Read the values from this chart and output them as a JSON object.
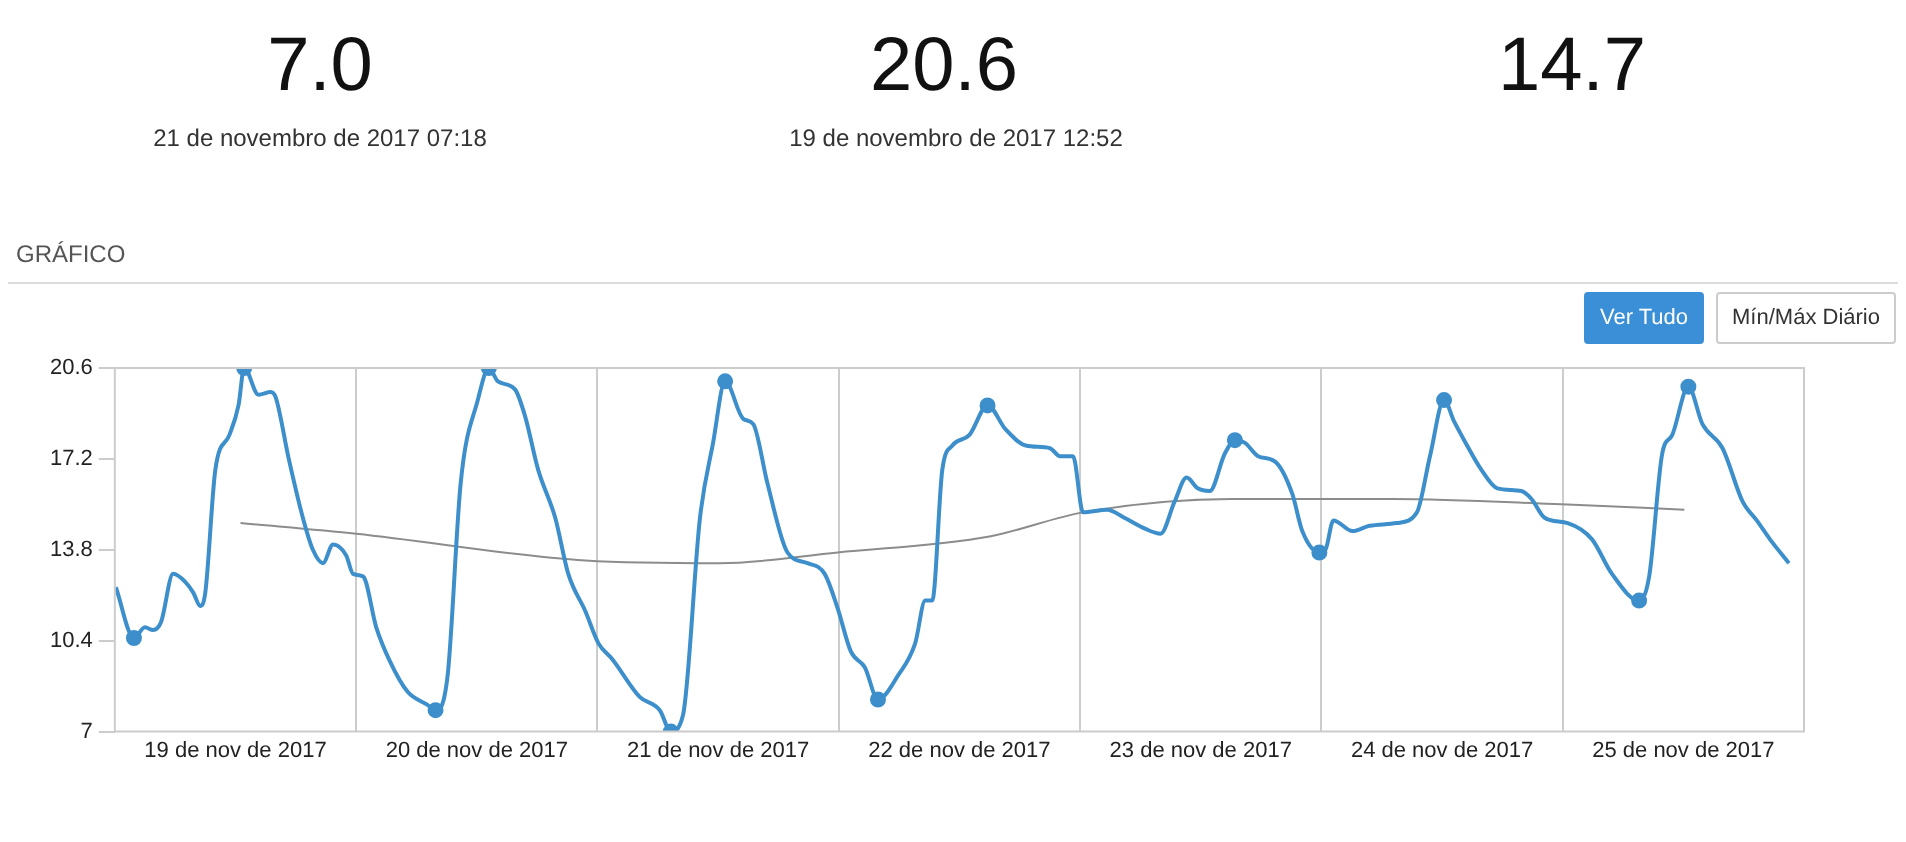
{
  "chart_data": {
    "type": "line",
    "title": "GRÁFICO",
    "annotations": [
      "7.0",
      "21 de novembro de 2017 07:18",
      "20.6",
      "19 de novembro de 2017 12:52",
      "14.7",
      "Ver Tudo",
      "Mín/Máx Diário"
    ],
    "xlim": [
      "2017-11-19T00:00",
      "2017-11-26T00:00"
    ],
    "xticks": [
      {
        "value": "2017-11-19T12:00",
        "label": "19 de nov de 2017"
      },
      {
        "value": "2017-11-20T00:00",
        "label": null
      },
      {
        "value": "2017-11-20T12:00",
        "label": "20 de nov de 2017"
      },
      {
        "value": "2017-11-21T00:00",
        "label": null
      },
      {
        "value": "2017-11-21T12:00",
        "label": "21 de nov de 2017"
      },
      {
        "value": "2017-11-22T00:00",
        "label": null
      },
      {
        "value": "2017-11-22T12:00",
        "label": "22 de nov de 2017"
      },
      {
        "value": "2017-11-23T00:00",
        "label": null
      },
      {
        "value": "2017-11-23T12:00",
        "label": "23 de nov de 2017"
      },
      {
        "value": "2017-11-24T00:00",
        "label": null
      },
      {
        "value": "2017-11-24T12:00",
        "label": "24 de nov de 2017"
      },
      {
        "value": "2017-11-25T00:00",
        "label": null
      },
      {
        "value": "2017-11-25T12:00",
        "label": "25 de nov de 2017"
      }
    ],
    "ylim": [
      7,
      20.6
    ],
    "yticks": [
      7,
      10.4,
      13.8,
      17.2,
      20.6
    ],
    "grid": "x",
    "legend": false,
    "series": [
      {
        "color": "#3d8fcb",
        "marker": "none",
        "x": [
          "2017-11-19T00:06",
          "2017-11-19T01:54",
          "2017-11-19T03:00",
          "2017-11-19T03:48",
          "2017-11-19T04:36",
          "2017-11-19T05:48",
          "2017-11-19T07:00",
          "2017-11-19T07:48",
          "2017-11-19T08:30",
          "2017-11-19T09:00",
          "2017-11-19T10:00",
          "2017-11-19T11:24",
          "2017-11-19T12:18",
          "2017-11-19T12:52",
          "2017-11-19T14:18",
          "2017-11-19T15:30",
          "2017-11-19T16:00",
          "2017-11-19T17:18",
          "2017-11-19T18:42",
          "2017-11-19T19:42",
          "2017-11-19T20:42",
          "2017-11-19T21:42",
          "2017-11-19T23:00",
          "2017-11-19T23:42",
          "2017-11-20T00:42",
          "2017-11-20T02:00",
          "2017-11-20T03:24",
          "2017-11-20T05:06",
          "2017-11-20T07:06",
          "2017-11-20T07:54",
          "2017-11-20T09:06",
          "2017-11-20T10:24",
          "2017-11-20T12:06",
          "2017-11-20T13:12",
          "2017-11-20T14:06",
          "2017-11-20T15:48",
          "2017-11-20T16:48",
          "2017-11-20T18:06",
          "2017-11-20T19:48",
          "2017-11-20T21:06",
          "2017-11-20T22:48",
          "2017-11-21T00:06",
          "2017-11-21T01:30",
          "2017-11-21T04:12",
          "2017-11-21T06:12",
          "2017-11-21T07:18",
          "2017-11-21T08:30",
          "2017-11-21T10:12",
          "2017-11-21T11:30",
          "2017-11-21T12:42",
          "2017-11-21T14:30",
          "2017-11-21T15:30",
          "2017-11-21T16:54",
          "2017-11-21T18:54",
          "2017-11-21T20:54",
          "2017-11-21T22:36",
          "2017-11-21T23:54",
          "2017-11-22T01:12",
          "2017-11-22T02:36",
          "2017-11-22T03:54",
          "2017-11-22T05:54",
          "2017-11-22T07:36",
          "2017-11-22T08:36",
          "2017-11-22T09:18",
          "2017-11-22T10:18",
          "2017-11-22T11:18",
          "2017-11-22T13:00",
          "2017-11-22T14:48",
          "2017-11-22T16:36",
          "2017-11-22T18:36",
          "2017-11-22T21:00",
          "2017-11-22T22:00",
          "2017-11-22T23:18",
          "2017-11-23T00:18",
          "2017-11-23T02:42",
          "2017-11-23T04:24",
          "2017-11-23T06:24",
          "2017-11-23T08:00",
          "2017-11-23T09:24",
          "2017-11-23T10:36",
          "2017-11-23T11:42",
          "2017-11-23T12:54",
          "2017-11-23T14:24",
          "2017-11-23T15:24",
          "2017-11-23T16:24",
          "2017-11-23T17:42",
          "2017-11-23T19:24",
          "2017-11-23T21:06",
          "2017-11-23T22:06",
          "2017-11-23T23:48",
          "2017-11-24T00:24",
          "2017-11-24T01:12",
          "2017-11-24T03:06",
          "2017-11-24T04:48",
          "2017-11-24T07:30",
          "2017-11-24T09:30",
          "2017-11-24T10:48",
          "2017-11-24T12:12",
          "2017-11-24T13:12",
          "2017-11-24T14:12",
          "2017-11-24T15:54",
          "2017-11-24T17:30",
          "2017-11-24T19:54",
          "2017-11-24T20:54",
          "2017-11-24T22:12",
          "2017-11-25T00:30",
          "2017-11-25T02:54",
          "2017-11-25T04:54",
          "2017-11-25T07:36",
          "2017-11-25T08:36",
          "2017-11-25T09:54",
          "2017-11-25T10:54",
          "2017-11-25T12:30",
          "2017-11-25T13:54",
          "2017-11-25T15:54",
          "2017-11-25T17:54",
          "2017-11-25T19:18",
          "2017-11-25T20:36",
          "2017-11-25T22:30"
        ],
        "values": [
          12.4,
          10.5,
          10.9,
          10.8,
          11.1,
          12.9,
          12.6,
          12.2,
          11.7,
          12.2,
          16.8,
          18.1,
          19.2,
          20.6,
          19.6,
          19.7,
          19.5,
          17.2,
          15.0,
          13.8,
          13.3,
          14.0,
          13.6,
          12.9,
          12.8,
          10.9,
          9.6,
          8.5,
          8.0,
          7.8,
          9.1,
          16.3,
          19.4,
          20.6,
          20.1,
          19.8,
          18.8,
          16.8,
          15.0,
          12.9,
          11.5,
          10.3,
          9.7,
          8.3,
          7.8,
          7.0,
          7.6,
          15.0,
          17.8,
          20.1,
          18.7,
          18.5,
          16.3,
          13.7,
          13.3,
          12.9,
          11.6,
          10.0,
          9.4,
          8.2,
          9.1,
          10.3,
          11.9,
          11.9,
          16.8,
          17.7,
          18.1,
          19.2,
          18.3,
          17.7,
          17.6,
          17.3,
          17.3,
          15.2,
          15.3,
          15.0,
          14.6,
          14.4,
          15.6,
          16.5,
          16.1,
          16.0,
          17.4,
          17.9,
          17.8,
          17.3,
          17.1,
          15.9,
          14.5,
          13.7,
          13.8,
          14.9,
          14.5,
          14.7,
          14.8,
          15.2,
          17.3,
          19.4,
          18.6,
          17.9,
          16.8,
          16.1,
          16.0,
          15.7,
          15.0,
          14.8,
          14.2,
          12.9,
          11.9,
          12.8,
          17.4,
          18.1,
          19.9,
          18.5,
          17.6,
          15.6,
          14.9,
          14.2,
          13.3
        ]
      },
      {
        "type": "scatter",
        "color": "#3d8fcb",
        "marker": "circle",
        "x": [
          "2017-11-19T01:54",
          "2017-11-19T12:52",
          "2017-11-20T07:54",
          "2017-11-20T13:12",
          "2017-11-21T07:18",
          "2017-11-21T12:42",
          "2017-11-22T03:54",
          "2017-11-22T14:48",
          "2017-11-23T15:24",
          "2017-11-23T23:48",
          "2017-11-24T12:12",
          "2017-11-25T07:36",
          "2017-11-25T12:30"
        ],
        "values": [
          10.5,
          20.6,
          7.8,
          20.6,
          7.0,
          20.1,
          8.2,
          19.2,
          17.9,
          13.7,
          19.4,
          11.9,
          19.9
        ]
      },
      {
        "color": "#8c8c8c",
        "marker": "none",
        "x": [
          "2017-11-19T12:30",
          "2017-11-20T00:00",
          "2017-11-20T22:48",
          "2017-11-21T12:12",
          "2017-11-21T23:54",
          "2017-11-22T15:00",
          "2017-11-23T00:18",
          "2017-11-23T15:00",
          "2017-11-24T07:06",
          "2017-11-24T23:54",
          "2017-11-25T12:06"
        ],
        "values": [
          14.8,
          14.4,
          13.4,
          13.3,
          13.7,
          14.3,
          15.2,
          15.7,
          15.7,
          15.5,
          15.3
        ]
      }
    ]
  }
}
